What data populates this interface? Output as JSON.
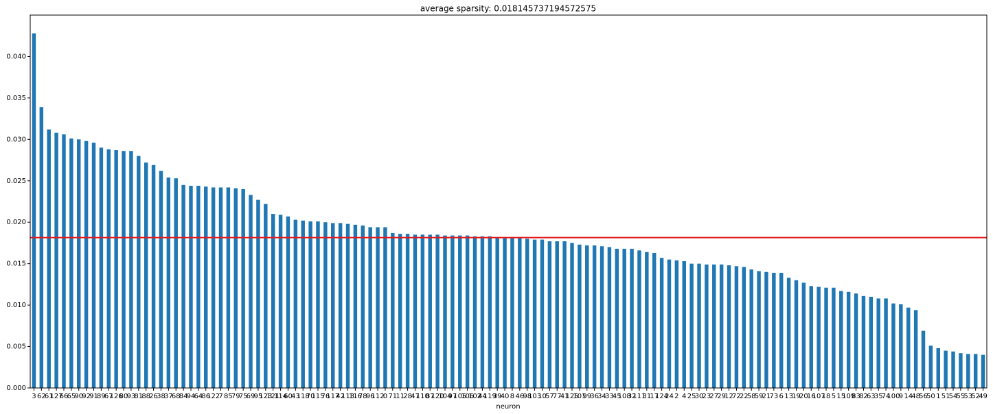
{
  "chart_data": {
    "type": "bar",
    "title": "average sparsity: 0.018145737194572575",
    "xlabel": "neuron",
    "color": "#1f77b4",
    "categories": [
      "3",
      "62",
      "61",
      "127",
      "66",
      "65",
      "90",
      "92",
      "91",
      "89",
      "67",
      "126",
      "80",
      "93",
      "81",
      "88",
      "26",
      "38",
      "37",
      "68",
      "84",
      "94",
      "64",
      "86",
      "122",
      "7",
      "85",
      "79",
      "75",
      "69",
      "95",
      "123",
      "121",
      "114",
      "60",
      "43",
      "118",
      "70",
      "115",
      "76",
      "117",
      "42",
      "113",
      "116",
      "78",
      "96",
      "112",
      "0",
      "71",
      "11",
      "28",
      "47",
      "110",
      "87",
      "120",
      "104",
      "97",
      "105",
      "106",
      "102",
      "44",
      "119",
      "39",
      "40",
      "8",
      "46",
      "98",
      "103",
      "10",
      "57",
      "77",
      "41",
      "125",
      "101",
      "99",
      "36",
      "34",
      "33",
      "45",
      "108",
      "32",
      "111",
      "31",
      "17",
      "124",
      "24",
      "2",
      "4",
      "25",
      "30",
      "23",
      "27",
      "29",
      "12",
      "72",
      "22",
      "58",
      "59",
      "21",
      "73",
      "6",
      "13",
      "19",
      "20",
      "16",
      "107",
      "18",
      "5",
      "15",
      "109",
      "83",
      "82",
      "63",
      "35",
      "74",
      "100",
      "9",
      "14",
      "48",
      "56",
      "50",
      "1",
      "51",
      "54",
      "55",
      "53",
      "52",
      "49"
    ],
    "values": [
      0.0428,
      0.0339,
      0.0312,
      0.0308,
      0.0306,
      0.0301,
      0.03,
      0.0298,
      0.0296,
      0.029,
      0.0288,
      0.0287,
      0.0286,
      0.0286,
      0.028,
      0.0272,
      0.0269,
      0.0262,
      0.0254,
      0.0253,
      0.0245,
      0.0244,
      0.0244,
      0.0243,
      0.0242,
      0.0242,
      0.0242,
      0.0241,
      0.024,
      0.0233,
      0.0227,
      0.0222,
      0.021,
      0.0209,
      0.0207,
      0.0203,
      0.0202,
      0.0201,
      0.0201,
      0.02,
      0.0199,
      0.0199,
      0.0198,
      0.0197,
      0.0196,
      0.0194,
      0.0194,
      0.0194,
      0.0187,
      0.0186,
      0.0186,
      0.0185,
      0.0185,
      0.0185,
      0.0185,
      0.0184,
      0.0184,
      0.0184,
      0.0184,
      0.0183,
      0.0183,
      0.0183,
      0.0182,
      0.0182,
      0.0181,
      0.0181,
      0.018,
      0.0179,
      0.0179,
      0.0177,
      0.0177,
      0.0177,
      0.0175,
      0.0173,
      0.0172,
      0.0172,
      0.0171,
      0.017,
      0.0168,
      0.0168,
      0.0168,
      0.0166,
      0.0164,
      0.0163,
      0.0157,
      0.0155,
      0.0154,
      0.0153,
      0.015,
      0.015,
      0.0149,
      0.0149,
      0.0149,
      0.0148,
      0.0147,
      0.0146,
      0.0143,
      0.0141,
      0.014,
      0.0139,
      0.0139,
      0.0133,
      0.013,
      0.0127,
      0.0123,
      0.0122,
      0.0121,
      0.0121,
      0.0117,
      0.0116,
      0.0114,
      0.0111,
      0.011,
      0.0108,
      0.0108,
      0.0102,
      0.0101,
      0.0097,
      0.0094,
      0.0069,
      0.0051,
      0.0048,
      0.0045,
      0.0044,
      0.0042,
      0.0041,
      0.0041,
      0.004
    ],
    "hline": {
      "value": 0.018145737194572575,
      "color": "#e41a1c"
    },
    "ylim": [
      0,
      0.045
    ],
    "yticks": [
      {
        "value": 0,
        "label": "0.000"
      },
      {
        "value": 0.005,
        "label": "0.005"
      },
      {
        "value": 0.01,
        "label": "0.010"
      },
      {
        "value": 0.015,
        "label": "0.015"
      },
      {
        "value": 0.02,
        "label": "0.020"
      },
      {
        "value": 0.025,
        "label": "0.025"
      },
      {
        "value": 0.03,
        "label": "0.030"
      },
      {
        "value": 0.035,
        "label": "0.035"
      },
      {
        "value": 0.04,
        "label": "0.040"
      }
    ]
  }
}
